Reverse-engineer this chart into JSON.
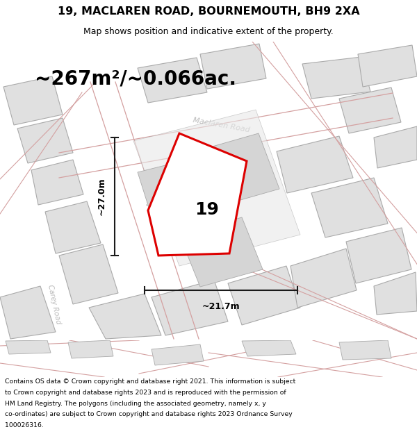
{
  "title": "19, MACLAREN ROAD, BOURNEMOUTH, BH9 2XA",
  "subtitle": "Map shows position and indicative extent of the property.",
  "area_label": "~267m²/~0.066ac.",
  "number_label": "19",
  "width_label": "~21.7m",
  "height_label": "~27.0m",
  "footer_lines": [
    "Contains OS data © Crown copyright and database right 2021. This information is subject",
    "to Crown copyright and database rights 2023 and is reproduced with the permission of",
    "HM Land Registry. The polygons (including the associated geometry, namely x, y",
    "co-ordinates) are subject to Crown copyright and database rights 2023 Ordnance Survey",
    "100026316."
  ],
  "map_bg": "#f0efef",
  "building_fill": "#e0e0e0",
  "building_stroke": "#aaaaaa",
  "red_stroke": "#dd0000",
  "road_label_color": "#bbbbbb",
  "dim_line_color": "#1a1a1a",
  "road_line_color": "#d4a0a0"
}
